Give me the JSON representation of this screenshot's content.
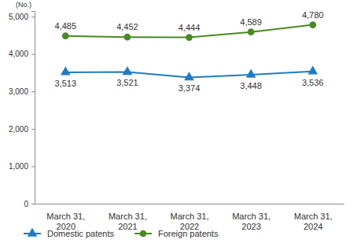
{
  "chart_data": {
    "type": "line",
    "y_label": "(No.)",
    "categories": [
      "March 31, 2020",
      "March 31, 2021",
      "March 31, 2022",
      "March 31, 2023",
      "March 31, 2024"
    ],
    "series": [
      {
        "name": "Domestic patents",
        "color": "#1f7bc6",
        "marker": "triangle",
        "line_style": "solid",
        "values": [
          3513,
          3521,
          3374,
          3448,
          3536
        ],
        "value_labels": [
          "3,513",
          "3,521",
          "3,374",
          "3,448",
          "3,536"
        ]
      },
      {
        "name": "Foreign patents",
        "color": "#4b8a22",
        "marker": "circle",
        "line_style": "solid",
        "values": [
          4485,
          4452,
          4444,
          4589,
          4780
        ],
        "value_labels": [
          "4,485",
          "4,452",
          "4,444",
          "4,589",
          "4,780"
        ]
      }
    ],
    "ylim": [
      0,
      5150
    ],
    "yticks": [
      0,
      {
        "value": 1000,
        "label": "1,000"
      },
      {
        "value": 2000,
        "label": "2,000"
      },
      {
        "value": 3000,
        "label": "3,000"
      },
      {
        "value": 4000,
        "label": "4,000"
      },
      {
        "value": 5000,
        "label": "5,000"
      }
    ],
    "grid": false,
    "data_labels": true,
    "legend": "bottom"
  }
}
